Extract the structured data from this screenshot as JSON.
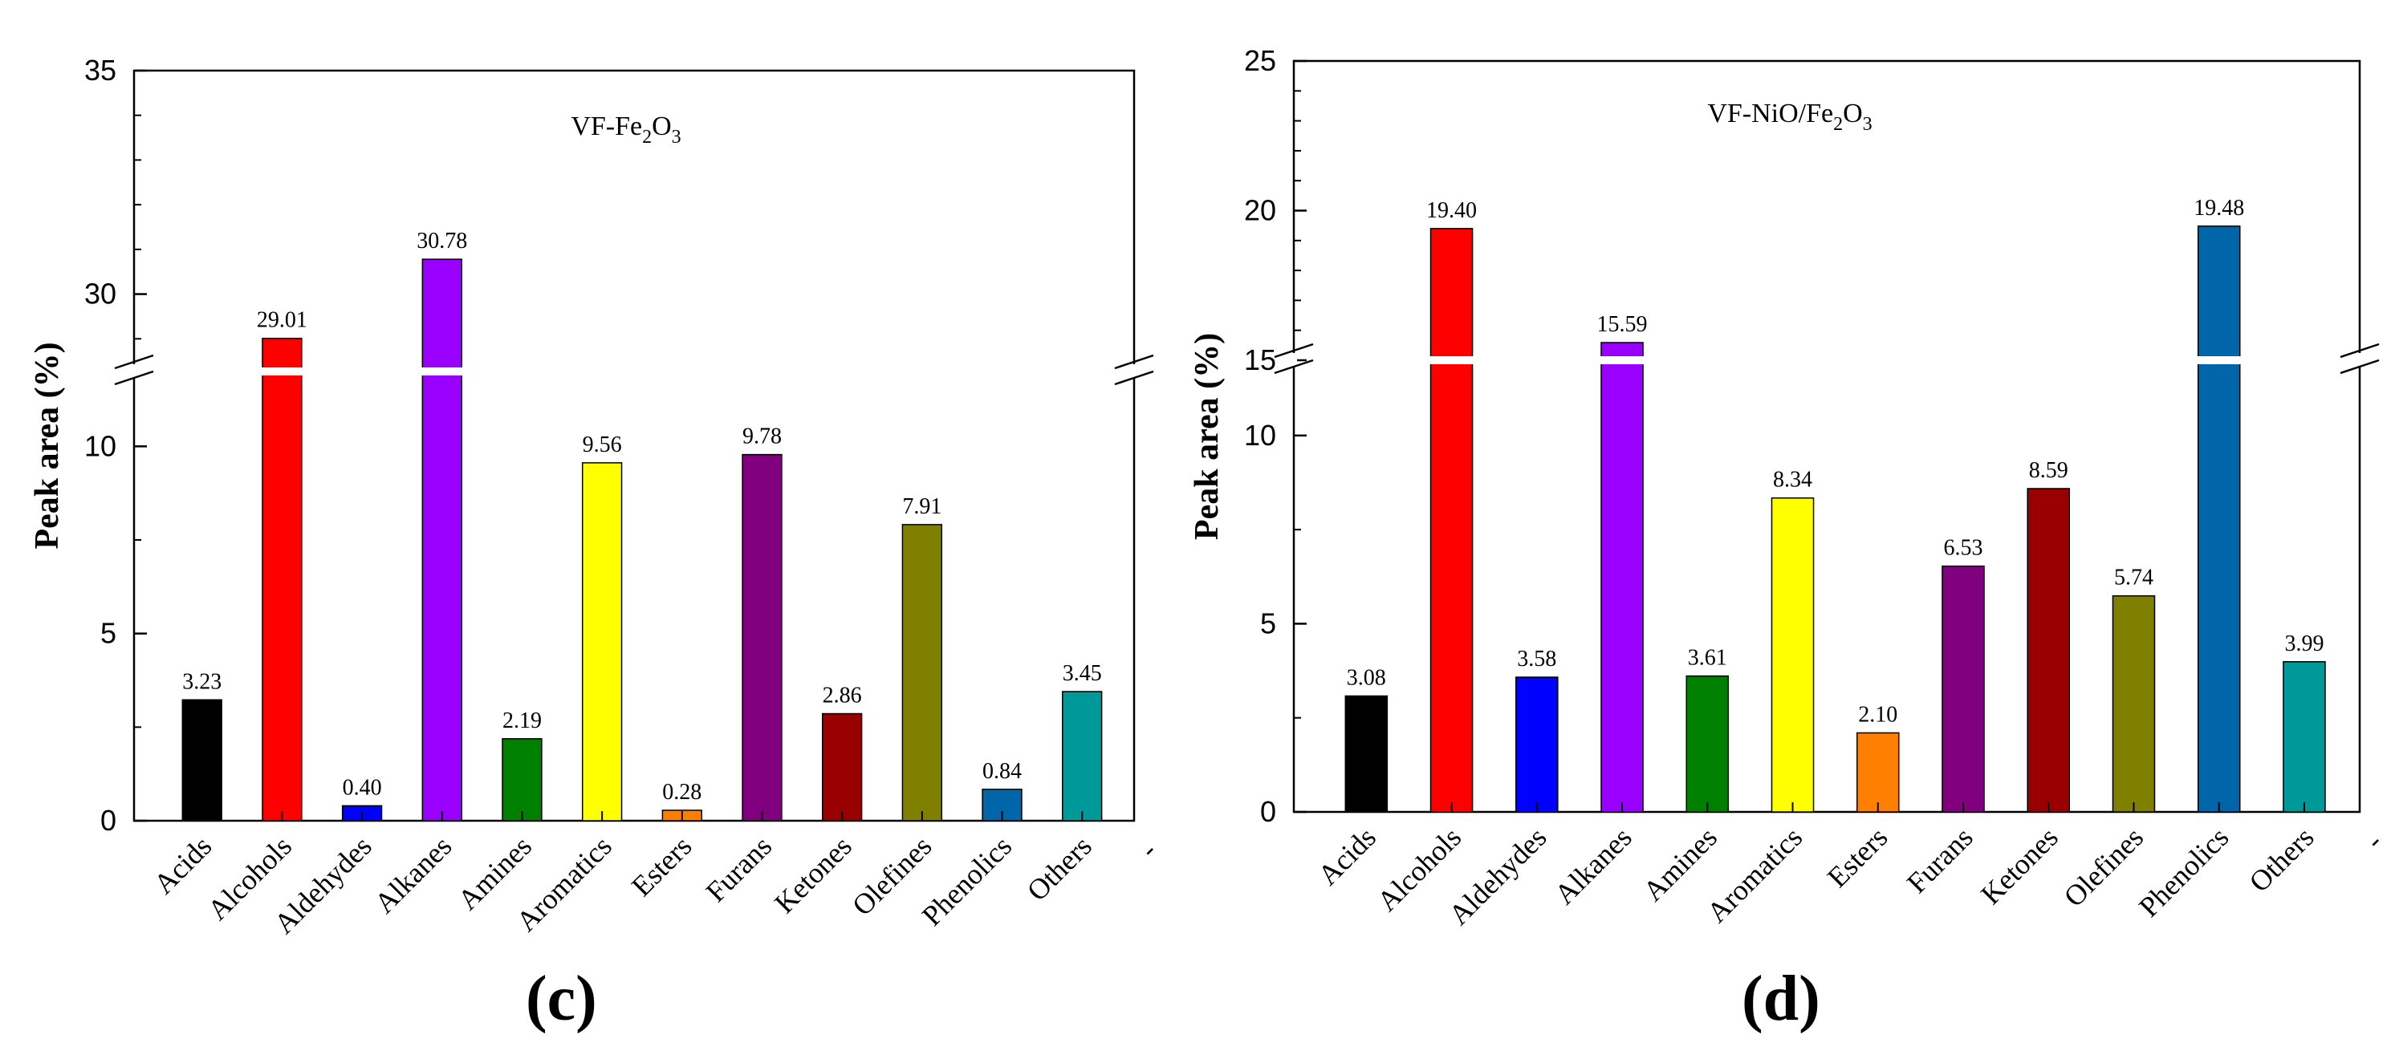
{
  "chart_data": [
    {
      "type": "bar",
      "panel_label": "(c)",
      "title_parts": [
        "VF-Fe",
        "2",
        "O",
        "3"
      ],
      "ylabel": "Peak area (%)",
      "xlabel": "",
      "axis_break": true,
      "lower_ylim": [
        0,
        12
      ],
      "upper_ylim": [
        28,
        35
      ],
      "yticks_lower": [
        "0",
        "5",
        "10"
      ],
      "yticks_upper": [
        "30",
        "35"
      ],
      "categories": [
        "Acids",
        "Alcohols",
        "Aldehydes",
        "Alkanes",
        "Amines",
        "Aromatics",
        "Esters",
        "Furans",
        "Ketones",
        "Olefines",
        "Phenolics",
        "Others"
      ],
      "values": [
        3.23,
        29.01,
        0.4,
        30.78,
        2.19,
        9.56,
        0.28,
        9.78,
        2.86,
        7.91,
        0.84,
        3.45
      ],
      "value_labels": [
        "3.23",
        "29.01",
        "0.40",
        "30.78",
        "2.19",
        "9.56",
        "0.28",
        "9.78",
        "2.86",
        "7.91",
        "0.84",
        "3.45"
      ],
      "colors": [
        "#000000",
        "#ff0000",
        "#0000ff",
        "#9900ff",
        "#008000",
        "#ffff00",
        "#ff8000",
        "#800080",
        "#990000",
        "#808000",
        "#0066aa",
        "#009999"
      ],
      "trailing_tick_label": "-"
    },
    {
      "type": "bar",
      "panel_label": "(d)",
      "title_parts": [
        "VF-NiO/Fe",
        "2",
        "O",
        "3"
      ],
      "ylabel": "Peak area (%)",
      "xlabel": "",
      "axis_break": true,
      "lower_ylim": [
        0,
        12
      ],
      "upper_ylim": [
        15,
        25
      ],
      "yticks_lower": [
        "0",
        "5",
        "10"
      ],
      "yticks_upper": [
        "15",
        "20",
        "25"
      ],
      "categories": [
        "Acids",
        "Alcohols",
        "Aldehydes",
        "Alkanes",
        "Amines",
        "Aromatics",
        "Esters",
        "Furans",
        "Ketones",
        "Olefines",
        "Phenolics",
        "Others"
      ],
      "values": [
        3.08,
        19.4,
        3.58,
        15.59,
        3.61,
        8.34,
        2.1,
        6.53,
        8.59,
        5.74,
        19.48,
        3.99
      ],
      "value_labels": [
        "3.08",
        "19.40",
        "3.58",
        "15.59",
        "3.61",
        "8.34",
        "2.10",
        "6.53",
        "8.59",
        "5.74",
        "19.48",
        "3.99"
      ],
      "colors": [
        "#000000",
        "#ff0000",
        "#0000ff",
        "#9900ff",
        "#008000",
        "#ffff00",
        "#ff8000",
        "#800080",
        "#990000",
        "#808000",
        "#0066aa",
        "#009999"
      ],
      "trailing_tick_label": "-"
    }
  ]
}
